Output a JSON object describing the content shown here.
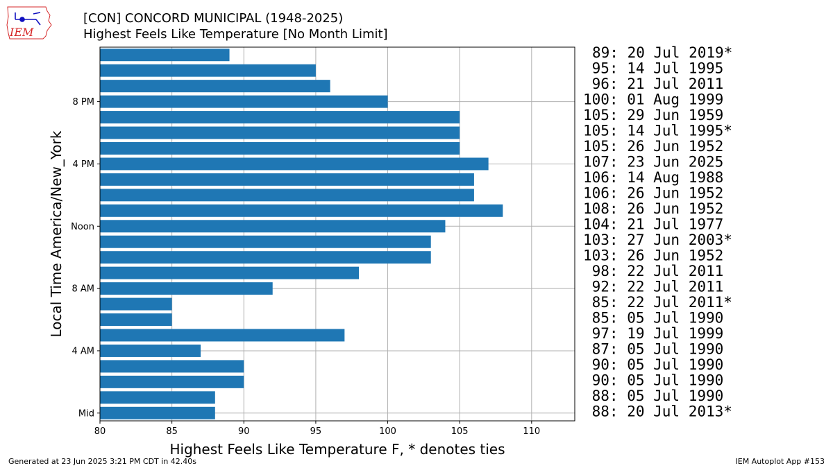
{
  "header": {
    "title": "[CON] CONCORD MUNICIPAL (1948-2025)",
    "subtitle": "Highest Feels Like Temperature [No Month Limit]"
  },
  "logo": {
    "text": "IEM",
    "icon": "iem-iowa-logo"
  },
  "footer": {
    "left": "Generated at 23 Jun 2025 3:21 PM CDT in 42.40s",
    "right": "IEM Autoplot App #153"
  },
  "colors": {
    "bar": "#1f77b4",
    "grid": "#b0b0b0",
    "logo_red": "#d62728",
    "logo_blue": "#1010c0"
  },
  "chart_data": {
    "type": "bar",
    "orientation": "horizontal",
    "xlabel": "Highest Feels Like Temperature F, * denotes ties",
    "ylabel": "Local Time America/New_York",
    "xlim": [
      80,
      113
    ],
    "xticks": [
      80,
      85,
      90,
      95,
      100,
      105,
      110
    ],
    "grid": true,
    "hours": [
      0,
      1,
      2,
      3,
      4,
      5,
      6,
      7,
      8,
      9,
      10,
      11,
      12,
      13,
      14,
      15,
      16,
      17,
      18,
      19,
      20,
      21,
      22,
      23
    ],
    "values": [
      88,
      88,
      90,
      90,
      87,
      97,
      85,
      85,
      92,
      98,
      103,
      103,
      104,
      108,
      106,
      106,
      107,
      105,
      105,
      105,
      100,
      96,
      95,
      89
    ],
    "yticks": [
      {
        "hour": 0,
        "label": "Mid"
      },
      {
        "hour": 4,
        "label": "4 AM"
      },
      {
        "hour": 8,
        "label": "8 AM"
      },
      {
        "hour": 12,
        "label": "Noon"
      },
      {
        "hour": 16,
        "label": "4 PM"
      },
      {
        "hour": 20,
        "label": "8 PM"
      }
    ],
    "annotations": [
      "89: 20 Jul 2019*",
      " 95: 14 Jul 1995",
      " 96: 21 Jul 2011",
      "100: 01 Aug 1999",
      "105: 29 Jun 1959",
      "105: 14 Jul 1995*",
      "105: 26 Jun 1952",
      "107: 23 Jun 2025",
      "106: 14 Aug 1988",
      "106: 26 Jun 1952",
      "108: 26 Jun 1952",
      "104: 21 Jul 1977",
      "103: 27 Jun 2003*",
      "103: 26 Jun 1952",
      " 98: 22 Jul 2011",
      " 92: 22 Jul 2011",
      " 85: 22 Jul 2011*",
      " 85: 05 Jul 1990",
      " 97: 19 Jul 1999",
      " 87: 05 Jul 1990",
      " 90: 05 Jul 1990",
      " 90: 05 Jul 1990",
      " 88: 05 Jul 1990",
      " 88: 20 Jul 2013*"
    ]
  }
}
